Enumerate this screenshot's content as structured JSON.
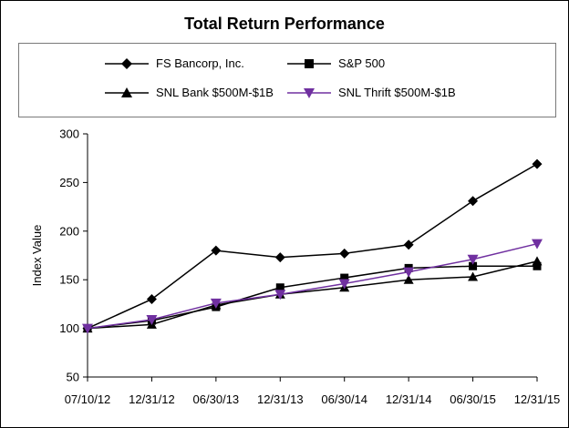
{
  "chart_data": {
    "type": "line",
    "title": "Total Return Performance",
    "xlabel": "",
    "ylabel": "Index Value",
    "categories": [
      "07/10/12",
      "12/31/12",
      "06/30/13",
      "12/31/13",
      "06/30/14",
      "12/31/14",
      "06/30/15",
      "12/31/15"
    ],
    "ylim": [
      50,
      300
    ],
    "yticks": [
      50,
      100,
      150,
      200,
      250,
      300
    ],
    "grid": false,
    "legend_position": "top",
    "series": [
      {
        "name": "FS Bancorp, Inc.",
        "marker": "diamond",
        "color": "#000000",
        "values": [
          100,
          130,
          180,
          173,
          177,
          186,
          231,
          269
        ]
      },
      {
        "name": "S&P 500",
        "marker": "square",
        "color": "#000000",
        "values": [
          100,
          108,
          122,
          142,
          152,
          162,
          164,
          164
        ]
      },
      {
        "name": "SNL Bank $500M-$1B",
        "marker": "triangle-up",
        "color": "#000000",
        "values": [
          100,
          104,
          124,
          135,
          142,
          150,
          153,
          169
        ]
      },
      {
        "name": "SNL Thrift $500M-$1B",
        "marker": "triangle-down",
        "color": "#7030a0",
        "values": [
          100,
          109,
          126,
          135,
          146,
          158,
          171,
          187
        ]
      }
    ]
  }
}
